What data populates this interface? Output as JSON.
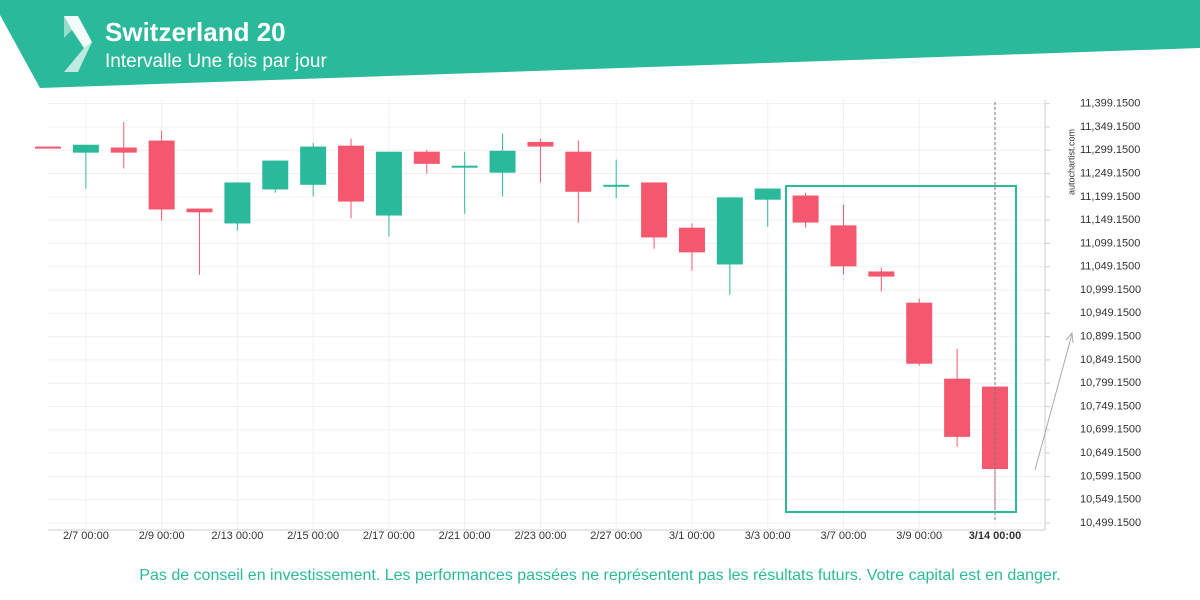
{
  "chart_data": {
    "type": "candlestick",
    "title": "Switzerland 20",
    "subtitle": "Intervalle Une fois par jour",
    "disclaimer": "Pas de conseil en investissement. Les performances passées ne représentent pas les résultats futurs. Votre capital est en danger.",
    "watermark": "autochartist.com",
    "categories": [
      null,
      "2/7 00:00",
      null,
      "2/9 00:00",
      null,
      "2/13 00:00",
      null,
      "2/15 00:00",
      null,
      "2/17 00:00",
      null,
      "2/21 00:00",
      null,
      "2/23 00:00",
      null,
      "2/27 00:00",
      null,
      "3/1 00:00",
      null,
      "3/3 00:00",
      null,
      "3/7 00:00",
      null,
      "3/9 00:00",
      null,
      "3/14 00:00"
    ],
    "series": [
      {
        "up_color": "#2bb99b",
        "down_color": "#f4586e",
        "open": [
          11307,
          11294,
          11305,
          11320,
          11174,
          11142,
          11215,
          11225,
          11309,
          11159,
          11296,
          11262,
          11251,
          11317,
          11296,
          11221,
          11230,
          11133,
          11054,
          11193,
          11202,
          11138,
          11039,
          10972,
          10809,
          10792
        ],
        "high": [
          11307,
          11311,
          11360,
          11341,
          11174,
          11230,
          11277,
          11315,
          11324,
          11296,
          11300,
          11296,
          11335,
          11324,
          11320,
          11279,
          11230,
          11142,
          11198,
          11217,
          11208,
          11182,
          11047,
          10981,
          10873,
          10792
        ],
        "low": [
          11307,
          11217,
          11260,
          11148,
          11032,
          11127,
          11208,
          11200,
          11153,
          11114,
          11249,
          11163,
          11200,
          11230,
          11144,
          11196,
          11088,
          11041,
          10989,
          11135,
          11133,
          11032,
          10996,
          10837,
          10663,
          10534
        ],
        "close": [
          11306,
          11311,
          11294,
          11172,
          11166,
          11230,
          11277,
          11307,
          11189,
          11296,
          11270,
          11266,
          11298,
          11307,
          11210,
          11225,
          11112,
          11080,
          11198,
          11217,
          11144,
          11050,
          11028,
          10841,
          10684,
          10615
        ]
      }
    ],
    "ylim": [
      10484.15,
      11409.15
    ],
    "yticks": [
      {
        "value": 10499.15,
        "label": "10,499.1500"
      },
      {
        "value": 10549.15,
        "label": "10,549.1500"
      },
      {
        "value": 10599.15,
        "label": "10,599.1500"
      },
      {
        "value": 10649.15,
        "label": "10,649.1500"
      },
      {
        "value": 10699.15,
        "label": "10,699.1500"
      },
      {
        "value": 10749.15,
        "label": "10,749.1500"
      },
      {
        "value": 10799.15,
        "label": "10,799.1500"
      },
      {
        "value": 10849.15,
        "label": "10,849.1500"
      },
      {
        "value": 10899.15,
        "label": "10,899.1500"
      },
      {
        "value": 10949.15,
        "label": "10,949.1500"
      },
      {
        "value": 10999.15,
        "label": "10,999.1500"
      },
      {
        "value": 11049.15,
        "label": "11,049.1500"
      },
      {
        "value": 11099.15,
        "label": "11,099.1500"
      },
      {
        "value": 11149.15,
        "label": "11,149.1500"
      },
      {
        "value": 11199.15,
        "label": "11,199.1500"
      },
      {
        "value": 11249.15,
        "label": "11,249.1500"
      },
      {
        "value": 11299.15,
        "label": "11,299.1500"
      },
      {
        "value": 11349.15,
        "label": "11,349.1500"
      },
      {
        "value": 11399.15,
        "label": "11,399.1500"
      }
    ],
    "grid": true
  }
}
